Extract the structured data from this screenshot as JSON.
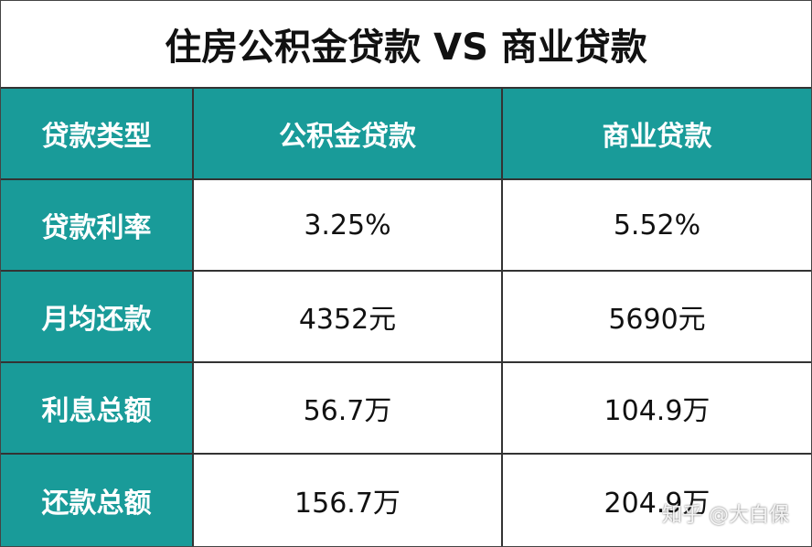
{
  "title": "住房公积金贷款 VS 商业贷款",
  "table": {
    "header": [
      "贷款类型",
      "公积金贷款",
      "商业贷款"
    ],
    "rows": [
      [
        "贷款利率",
        "3.25%",
        "5.52%"
      ],
      [
        "月均还款",
        "4352元",
        "5690元"
      ],
      [
        "利息总额",
        "56.7万",
        "104.9万"
      ],
      [
        "还款总额",
        "156.7万",
        "204.9万"
      ]
    ]
  },
  "watermark": "知乎 @大白保"
}
